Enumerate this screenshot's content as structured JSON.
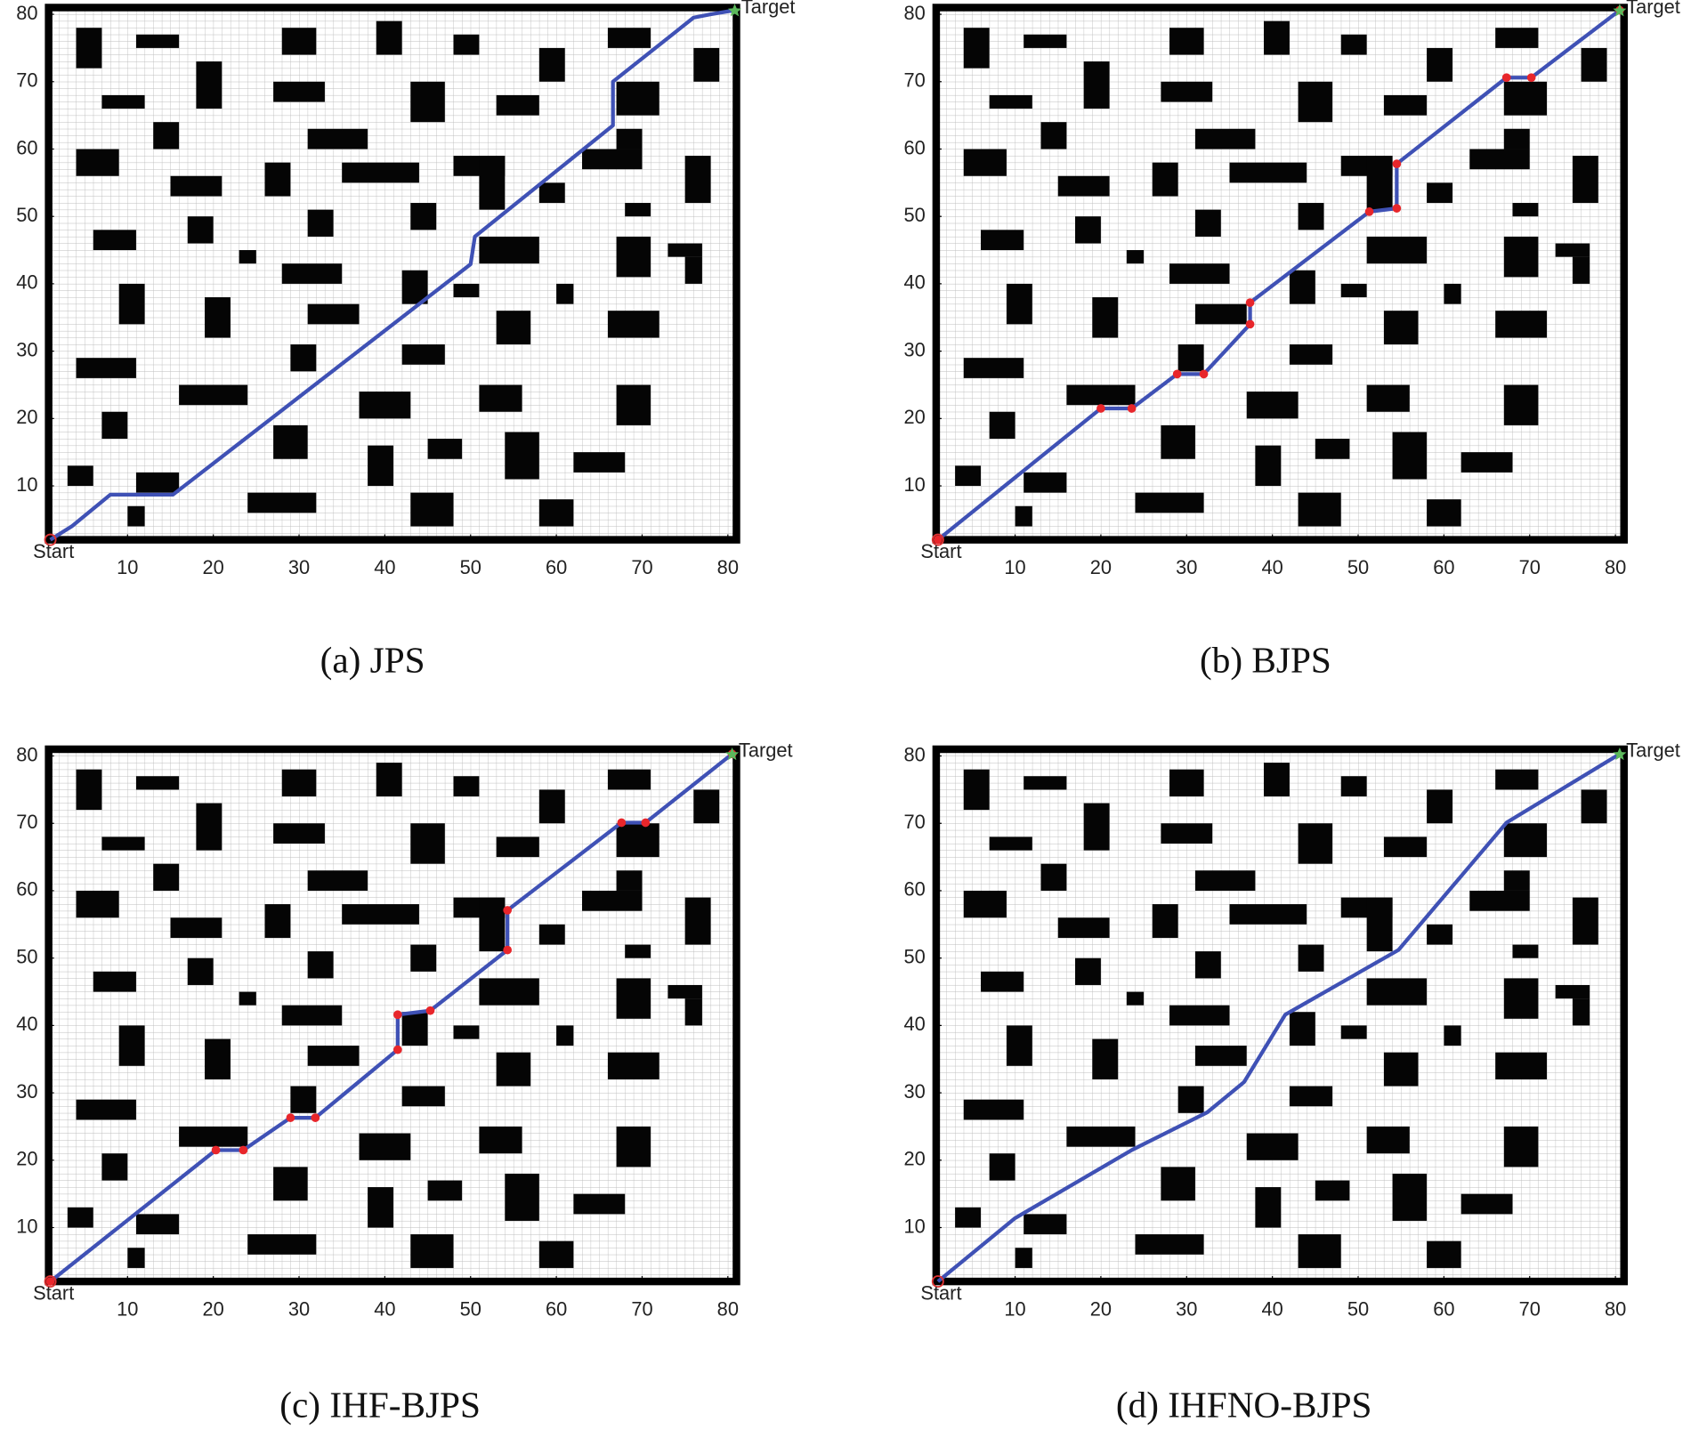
{
  "obstacles": [
    [
      4,
      72,
      3,
      6
    ],
    [
      11,
      75,
      5,
      2
    ],
    [
      28,
      74,
      4,
      4
    ],
    [
      39,
      74,
      3,
      5
    ],
    [
      48,
      74,
      3,
      3
    ],
    [
      58,
      70,
      3,
      5
    ],
    [
      66,
      75,
      5,
      3
    ],
    [
      76,
      70,
      3,
      5
    ],
    [
      18,
      66,
      3,
      7
    ],
    [
      7,
      66,
      5,
      2
    ],
    [
      27,
      67,
      6,
      3
    ],
    [
      43,
      64,
      4,
      6
    ],
    [
      53,
      65,
      5,
      3
    ],
    [
      67,
      65,
      5,
      5
    ],
    [
      13,
      60,
      3,
      4
    ],
    [
      31,
      60,
      7,
      3
    ],
    [
      4,
      56,
      5,
      4
    ],
    [
      15,
      53,
      6,
      3
    ],
    [
      26,
      53,
      3,
      5
    ],
    [
      35,
      55,
      9,
      3
    ],
    [
      48,
      56,
      6,
      3
    ],
    [
      51,
      51,
      3,
      8
    ],
    [
      63,
      57,
      7,
      3
    ],
    [
      67,
      60,
      3,
      3
    ],
    [
      75,
      52,
      3,
      7
    ],
    [
      58,
      52,
      3,
      3
    ],
    [
      6,
      45,
      5,
      3
    ],
    [
      17,
      46,
      3,
      4
    ],
    [
      31,
      47,
      3,
      4
    ],
    [
      43,
      48,
      3,
      4
    ],
    [
      68,
      50,
      3,
      2
    ],
    [
      51,
      43,
      7,
      4
    ],
    [
      67,
      41,
      4,
      6
    ],
    [
      73,
      44,
      4,
      2
    ],
    [
      75,
      40,
      2,
      4
    ],
    [
      23,
      43,
      2,
      2
    ],
    [
      28,
      40,
      7,
      3
    ],
    [
      9,
      34,
      3,
      6
    ],
    [
      19,
      32,
      3,
      6
    ],
    [
      31,
      34,
      6,
      3
    ],
    [
      42,
      37,
      3,
      5
    ],
    [
      48,
      38,
      3,
      2
    ],
    [
      60,
      37,
      2,
      3
    ],
    [
      53,
      31,
      4,
      5
    ],
    [
      66,
      32,
      6,
      4
    ],
    [
      4,
      26,
      7,
      3
    ],
    [
      29,
      27,
      3,
      4
    ],
    [
      42,
      28,
      5,
      3
    ],
    [
      16,
      22,
      8,
      3
    ],
    [
      37,
      20,
      6,
      4
    ],
    [
      51,
      21,
      5,
      4
    ],
    [
      67,
      19,
      4,
      6
    ],
    [
      7,
      17,
      3,
      4
    ],
    [
      27,
      14,
      4,
      5
    ],
    [
      38,
      10,
      3,
      6
    ],
    [
      45,
      14,
      4,
      3
    ],
    [
      54,
      11,
      4,
      7
    ],
    [
      62,
      12,
      6,
      3
    ],
    [
      3,
      10,
      3,
      3
    ],
    [
      11,
      9,
      5,
      3
    ],
    [
      24,
      6,
      8,
      3
    ],
    [
      43,
      4,
      5,
      5
    ],
    [
      58,
      4,
      4,
      4
    ],
    [
      10,
      4,
      2,
      3
    ]
  ],
  "chart_data": [
    {
      "type": "line",
      "title": "(a) JPS",
      "start_label": "Start",
      "target_label": "Target",
      "xlim": [
        0.8,
        81
      ],
      "ylim": [
        2,
        81
      ],
      "xticks": [
        10,
        20,
        30,
        40,
        50,
        60,
        70,
        80
      ],
      "yticks": [
        10,
        20,
        30,
        40,
        50,
        60,
        70,
        80
      ],
      "grid": true,
      "markers": false,
      "marker_color": "#e8262b",
      "series": [
        {
          "color": "#3f51b5",
          "x": [
            1,
            3.5,
            8,
            15.3,
            50,
            50.5,
            66.6,
            66.6,
            76,
            78,
            80.8
          ],
          "y": [
            2,
            4,
            8.7,
            8.7,
            42.9,
            47,
            63.5,
            70,
            79.5,
            80,
            80.6
          ]
        }
      ]
    },
    {
      "type": "line",
      "title": "(b) BJPS",
      "start_label": "Start",
      "target_label": "Target",
      "xlim": [
        0.8,
        81
      ],
      "ylim": [
        2,
        81
      ],
      "xticks": [
        10,
        20,
        30,
        40,
        50,
        60,
        70,
        80
      ],
      "yticks": [
        10,
        20,
        30,
        40,
        50,
        60,
        70,
        80
      ],
      "grid": true,
      "markers": true,
      "marker_color": "#e8262b",
      "series": [
        {
          "color": "#3f51b5",
          "x": [
            1,
            20,
            23.6,
            28.9,
            32,
            37.4,
            37.4,
            51.3,
            54.5,
            54.5,
            67.3,
            70.2,
            80.5
          ],
          "y": [
            2,
            21.5,
            21.5,
            26.6,
            26.6,
            34,
            37.2,
            50.7,
            51.2,
            57.8,
            70.6,
            70.6,
            80.6
          ]
        }
      ]
    },
    {
      "type": "line",
      "title": "(c) IHF-BJPS",
      "start_label": "Start",
      "target_label": "Target",
      "xlim": [
        0.8,
        81
      ],
      "ylim": [
        2,
        81
      ],
      "xticks": [
        10,
        20,
        30,
        40,
        50,
        60,
        70,
        80
      ],
      "yticks": [
        10,
        20,
        30,
        40,
        50,
        60,
        70,
        80
      ],
      "grid": true,
      "markers": true,
      "marker_color": "#e8262b",
      "series": [
        {
          "color": "#3f51b5",
          "x": [
            1,
            20.3,
            23.5,
            29,
            31.9,
            41.5,
            41.5,
            45.3,
            54.3,
            54.3,
            67.6,
            70.4,
            80.5
          ],
          "y": [
            2,
            21.5,
            21.5,
            26.3,
            26.3,
            36.4,
            41.6,
            42.2,
            51.2,
            57.1,
            70.1,
            70.1,
            80.3
          ]
        }
      ]
    },
    {
      "type": "line",
      "title": "(d) IHFNO-BJPS",
      "start_label": "Start",
      "target_label": "Target",
      "xlim": [
        0.8,
        81
      ],
      "ylim": [
        2,
        81
      ],
      "xticks": [
        10,
        20,
        30,
        40,
        50,
        60,
        70,
        80
      ],
      "yticks": [
        10,
        20,
        30,
        40,
        50,
        60,
        70,
        80
      ],
      "grid": true,
      "markers": false,
      "marker_color": "#e8262b",
      "series": [
        {
          "color": "#3f51b5",
          "x": [
            1,
            10,
            23.6,
            32.4,
            36.7,
            41.5,
            54.7,
            67.3,
            80.5
          ],
          "y": [
            2,
            11.4,
            21.5,
            27.1,
            31.6,
            41.6,
            51.2,
            70.1,
            80.3
          ]
        }
      ]
    }
  ]
}
